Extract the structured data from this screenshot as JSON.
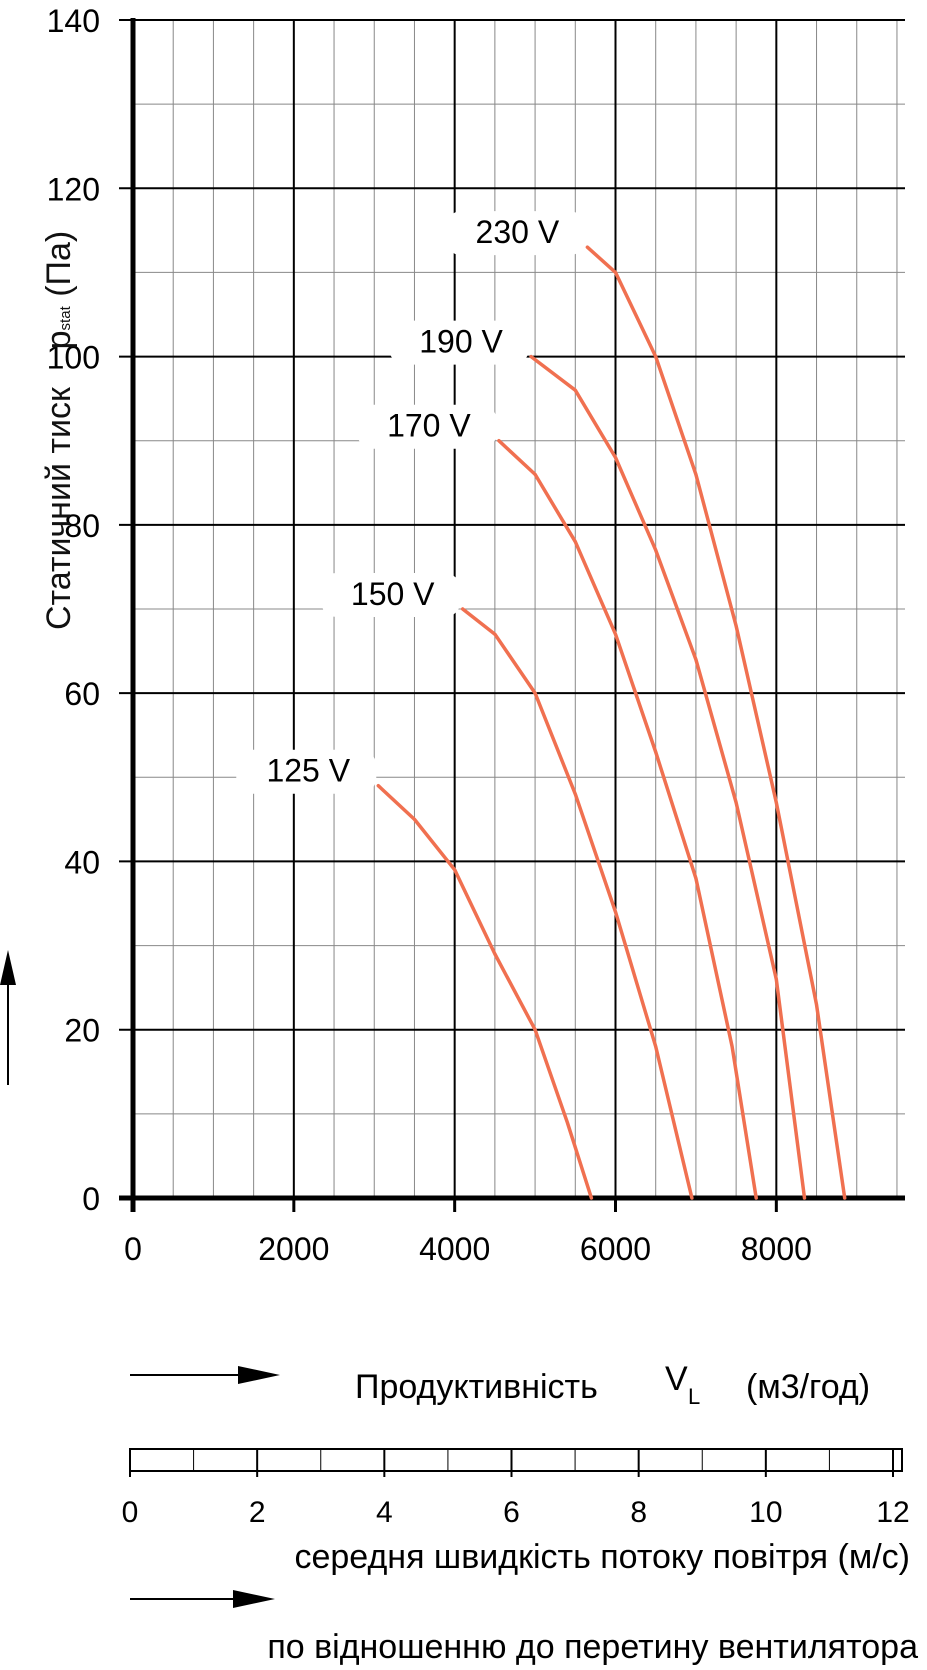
{
  "chart_data": {
    "type": "line",
    "title": "",
    "xlabel": "Продуктивність",
    "xlabel_symbol": "V",
    "xlabel_symbol_sub": "L",
    "xlabel_units": "(м3/год)",
    "ylabel": "Статичний тиск",
    "ylabel_symbol": "p",
    "ylabel_symbol_sub": "stat",
    "ylabel_units": "(Па)",
    "xlim": [
      0,
      9600
    ],
    "ylim": [
      0,
      140
    ],
    "x_ticks": [
      0,
      2000,
      4000,
      6000,
      8000
    ],
    "y_ticks": [
      0,
      20,
      40,
      60,
      80,
      100,
      120,
      140
    ],
    "grid": true,
    "series": [
      {
        "name": "125 V",
        "x": [
          3050,
          3500,
          4000,
          4500,
          5000,
          5400,
          5700
        ],
        "y": [
          49,
          45,
          39,
          29,
          20,
          9,
          0
        ]
      },
      {
        "name": "150 V",
        "x": [
          4100,
          4500,
          5000,
          5500,
          6000,
          6500,
          6950
        ],
        "y": [
          70,
          67,
          60,
          48,
          34,
          18,
          0
        ]
      },
      {
        "name": "170 V",
        "x": [
          4550,
          5000,
          5500,
          6000,
          6500,
          7000,
          7450,
          7750
        ],
        "y": [
          90,
          86,
          78,
          67,
          53,
          38,
          18,
          0
        ]
      },
      {
        "name": "190 V",
        "x": [
          4950,
          5500,
          6000,
          6500,
          7000,
          7500,
          8000,
          8350
        ],
        "y": [
          100,
          96,
          88,
          77,
          64,
          47,
          26,
          0
        ]
      },
      {
        "name": "230 V",
        "x": [
          5650,
          6000,
          6500,
          7000,
          7500,
          8000,
          8500,
          8850
        ],
        "y": [
          113,
          110,
          100,
          86,
          68,
          47,
          23,
          0
        ]
      }
    ],
    "line_color": "#f07050",
    "second_axis": {
      "label": "середня швидкість потоку повітря (м/с)",
      "label2": "по відношенню до перетину вентилятора",
      "ticks": [
        0,
        2,
        4,
        6,
        8,
        10,
        12
      ],
      "range": [
        0,
        12
      ]
    }
  }
}
